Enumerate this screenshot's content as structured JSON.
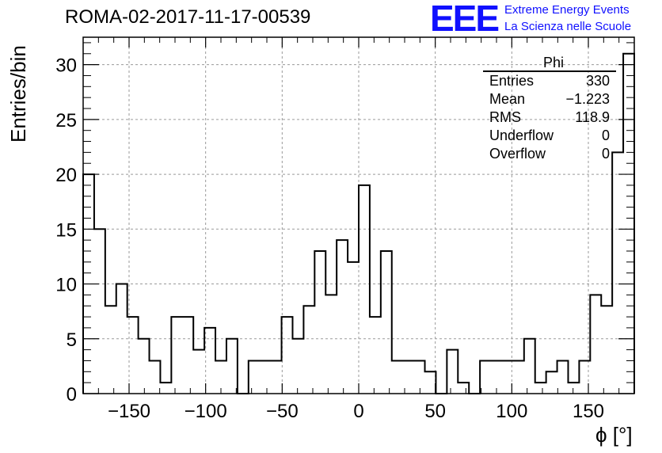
{
  "title": "ROMA-02-2017-11-17-00539",
  "logo": {
    "mark": "EEE",
    "line1": "Extreme Energy Events",
    "line2": "La Scienza nelle Scuole",
    "color": "#1010ff"
  },
  "stats": {
    "name": "Phi",
    "rows": [
      {
        "label": "Entries",
        "value": "330"
      },
      {
        "label": "Mean",
        "value": "−1.223"
      },
      {
        "label": "RMS",
        "value": "118.9"
      },
      {
        "label": "Underflow",
        "value": "0"
      },
      {
        "label": "Overflow",
        "value": "0"
      }
    ]
  },
  "chart_data": {
    "type": "bar",
    "style": "step-histogram",
    "xlabel": "ϕ [°]",
    "ylabel": "Entries/bin",
    "xlim": [
      -180,
      180
    ],
    "ylim": [
      0,
      32.5
    ],
    "bin_width": 7.2,
    "xticks": [
      -150,
      -100,
      -50,
      0,
      50,
      100,
      150
    ],
    "yticks": [
      0,
      5,
      10,
      15,
      20,
      25,
      30
    ],
    "grid": true,
    "values": [
      20,
      15,
      8,
      10,
      7,
      5,
      3,
      1,
      7,
      7,
      4,
      6,
      3,
      5,
      0,
      3,
      3,
      3,
      7,
      5,
      8,
      13,
      9,
      14,
      12,
      19,
      7,
      13,
      3,
      3,
      3,
      2,
      0,
      4,
      1,
      0,
      3,
      3,
      3,
      3,
      5,
      1,
      2,
      3,
      1,
      3,
      9,
      8,
      22,
      31
    ],
    "line_color": "#000000"
  }
}
